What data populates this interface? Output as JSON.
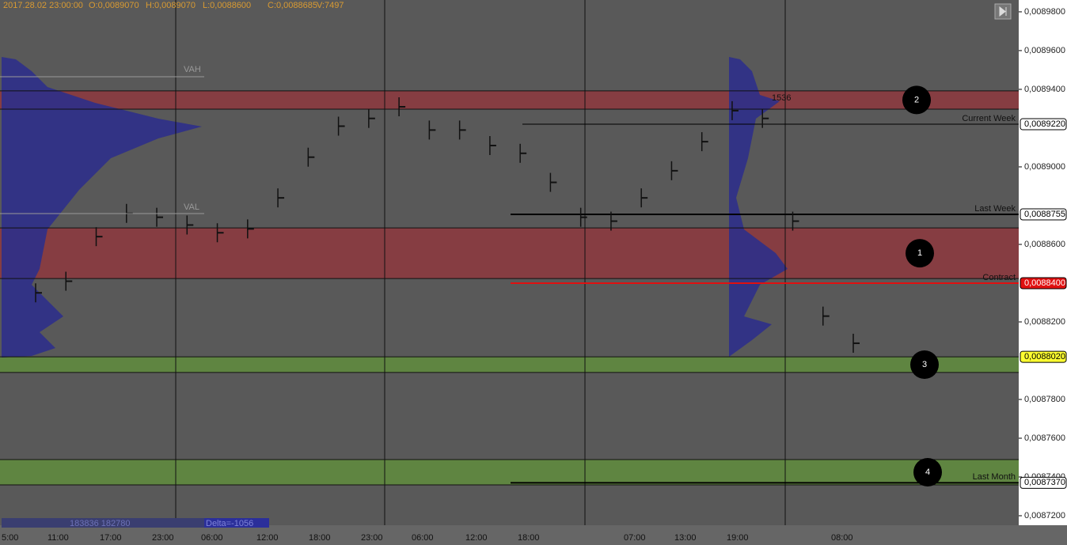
{
  "header": [
    "2017.28.02 23:00:00",
    "O:0,0089070",
    "H:0,0089070",
    "L:0,0088600",
    "C:0,0088685",
    "V:7497"
  ],
  "ylim": [
    0.0087151,
    0.0089861
  ],
  "yticks": [
    {
      "value": 0.00898,
      "label": "0,0089800"
    },
    {
      "value": 0.00896,
      "label": "0,0089600"
    },
    {
      "value": 0.00894,
      "label": "0,0089400"
    },
    {
      "value": 0.0089,
      "label": "0,0089000"
    },
    {
      "value": 0.00886,
      "label": "0,0088600"
    },
    {
      "value": 0.00882,
      "label": "0,0088200"
    },
    {
      "value": 0.00878,
      "label": "0,0087800"
    },
    {
      "value": 0.00876,
      "label": "0,0087600"
    },
    {
      "value": 0.00874,
      "label": "0,0087400"
    },
    {
      "value": 0.00872,
      "label": "0,0087200"
    }
  ],
  "levels": [
    {
      "name": "Current Week",
      "value": 0.008922,
      "label": "0,0089220",
      "color": "#000000",
      "box": "#ffffff"
    },
    {
      "name": "Last Week",
      "value": 0.0088755,
      "label": "0,0088755",
      "color": "#000000",
      "box": "#ffffff"
    },
    {
      "name": "Contract",
      "value": 0.00884,
      "label": "0,0088400",
      "color": "#e01010",
      "box": "#e01010"
    },
    {
      "name": "Last Month",
      "value": 0.008737,
      "label": "0,0087370",
      "color": "#000000",
      "box": "#ffffff"
    }
  ],
  "current_price": {
    "value": 0.008802,
    "label": "0,0088020"
  },
  "zones": [
    {
      "badge": "2",
      "top": 0.0089392,
      "bottom": 0.0089298,
      "color": "#8b3a3f"
    },
    {
      "badge": "1",
      "top": 0.0088685,
      "bottom": 0.0088424,
      "color": "#8b3a3f"
    },
    {
      "badge": "3",
      "top": 0.008802,
      "bottom": 0.0087939,
      "color": "#5f8a3e"
    },
    {
      "badge": "4",
      "top": 0.008749,
      "bottom": 0.0087359,
      "color": "#5f8a3e"
    }
  ],
  "price_trace": [
    0.008835,
    0.008841,
    0.008864,
    0.008876,
    0.008874,
    0.00887,
    0.008866,
    0.008868,
    0.008884,
    0.008905,
    0.008921,
    0.008925,
    0.008931,
    0.008919,
    0.008919,
    0.008911,
    0.008907,
    0.008892,
    0.008874,
    0.008872,
    0.008884,
    0.008898,
    0.008913,
    0.008929,
    0.008925,
    0.008872,
    0.008823,
    0.008809
  ],
  "annotations": {
    "vah": "VAH",
    "val": "VAL",
    "volume": "1536",
    "totals": "183836 182780",
    "delta": "Delta=-1056"
  },
  "x_labels": [
    "5:00",
    "11:00",
    "17:00",
    "23:00",
    "06:00",
    "12:00",
    "18:00",
    "23:00",
    "06:00",
    "12:00",
    "18:00",
    "07:00",
    "13:00",
    "19:00",
    "08:00"
  ]
}
